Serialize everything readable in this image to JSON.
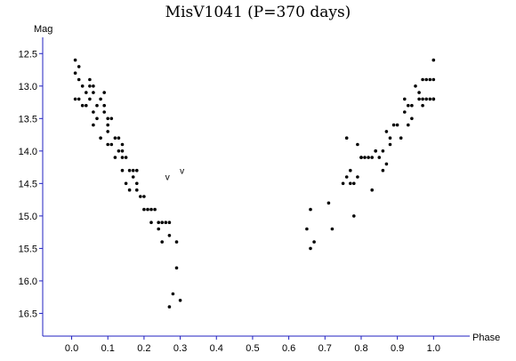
{
  "chart_data": {
    "type": "scatter",
    "title": "MisV1041 (P=370 days)",
    "xlabel": "Phase",
    "ylabel": "Mag",
    "xlim": [
      -0.08,
      1.1
    ],
    "ylim": [
      16.85,
      12.25
    ],
    "y_inverted": true,
    "x_ticks": [
      "0.0",
      "0.1",
      "0.2",
      "0.3",
      "0.4",
      "0.5",
      "0.6",
      "0.7",
      "0.8",
      "0.9",
      "1.0"
    ],
    "y_ticks": [
      "12.5",
      "13.0",
      "13.5",
      "14.0",
      "14.5",
      "15.0",
      "15.5",
      "16.0",
      "16.5"
    ],
    "grid": false,
    "marker_color": "#000000",
    "axis_color": "#2020c0",
    "points": [
      [
        0.01,
        12.6
      ],
      [
        0.01,
        12.8
      ],
      [
        0.02,
        12.7
      ],
      [
        0.02,
        13.2
      ],
      [
        0.02,
        12.9
      ],
      [
        0.01,
        13.2
      ],
      [
        0.03,
        13.0
      ],
      [
        0.03,
        13.3
      ],
      [
        0.04,
        13.1
      ],
      [
        0.04,
        13.3
      ],
      [
        0.05,
        12.9
      ],
      [
        0.05,
        13.2
      ],
      [
        0.05,
        13.0
      ],
      [
        0.06,
        13.1
      ],
      [
        0.06,
        13.0
      ],
      [
        0.06,
        13.4
      ],
      [
        0.06,
        13.6
      ],
      [
        0.07,
        13.3
      ],
      [
        0.07,
        13.5
      ],
      [
        0.08,
        13.2
      ],
      [
        0.08,
        13.8
      ],
      [
        0.09,
        13.3
      ],
      [
        0.09,
        13.1
      ],
      [
        0.09,
        13.4
      ],
      [
        0.1,
        13.5
      ],
      [
        0.1,
        13.7
      ],
      [
        0.1,
        13.6
      ],
      [
        0.1,
        13.9
      ],
      [
        0.11,
        13.5
      ],
      [
        0.11,
        13.9
      ],
      [
        0.12,
        13.8
      ],
      [
        0.12,
        14.1
      ],
      [
        0.13,
        13.8
      ],
      [
        0.13,
        14.0
      ],
      [
        0.14,
        14.1
      ],
      [
        0.14,
        13.9
      ],
      [
        0.14,
        14.0
      ],
      [
        0.14,
        14.3
      ],
      [
        0.15,
        14.1
      ],
      [
        0.15,
        14.5
      ],
      [
        0.16,
        14.3
      ],
      [
        0.16,
        14.6
      ],
      [
        0.17,
        14.3
      ],
      [
        0.17,
        14.4
      ],
      [
        0.18,
        14.3
      ],
      [
        0.18,
        14.6
      ],
      [
        0.18,
        14.5
      ],
      [
        0.19,
        14.7
      ],
      [
        0.2,
        14.7
      ],
      [
        0.2,
        14.9
      ],
      [
        0.21,
        14.9
      ],
      [
        0.22,
        15.1
      ],
      [
        0.22,
        14.9
      ],
      [
        0.23,
        14.9
      ],
      [
        0.24,
        15.1
      ],
      [
        0.24,
        15.2
      ],
      [
        0.25,
        15.1
      ],
      [
        0.25,
        15.4
      ],
      [
        0.26,
        15.1
      ],
      [
        0.27,
        15.3
      ],
      [
        0.27,
        15.1
      ],
      [
        0.27,
        16.4
      ],
      [
        0.28,
        16.2
      ],
      [
        0.29,
        15.8
      ],
      [
        0.29,
        15.4
      ],
      [
        0.3,
        16.3
      ],
      [
        0.65,
        15.2
      ],
      [
        0.66,
        15.5
      ],
      [
        0.66,
        14.9
      ],
      [
        0.67,
        15.4
      ],
      [
        0.71,
        14.8
      ],
      [
        0.72,
        15.2
      ],
      [
        0.75,
        14.5
      ],
      [
        0.76,
        13.8
      ],
      [
        0.76,
        14.4
      ],
      [
        0.77,
        14.3
      ],
      [
        0.77,
        14.5
      ],
      [
        0.78,
        15.0
      ],
      [
        0.78,
        14.5
      ],
      [
        0.79,
        13.9
      ],
      [
        0.79,
        14.4
      ],
      [
        0.8,
        14.1
      ],
      [
        0.8,
        14.1
      ],
      [
        0.81,
        14.1
      ],
      [
        0.82,
        14.1
      ],
      [
        0.83,
        14.6
      ],
      [
        0.83,
        14.1
      ],
      [
        0.84,
        14.0
      ],
      [
        0.84,
        14.0
      ],
      [
        0.85,
        14.1
      ],
      [
        0.86,
        14.3
      ],
      [
        0.86,
        14.0
      ],
      [
        0.87,
        13.7
      ],
      [
        0.87,
        14.2
      ],
      [
        0.88,
        13.9
      ],
      [
        0.88,
        13.8
      ],
      [
        0.89,
        13.6
      ],
      [
        0.9,
        13.6
      ],
      [
        0.91,
        13.8
      ],
      [
        0.92,
        13.2
      ],
      [
        0.92,
        13.4
      ],
      [
        0.93,
        13.3
      ],
      [
        0.93,
        13.6
      ],
      [
        0.94,
        13.5
      ],
      [
        0.94,
        13.3
      ],
      [
        0.95,
        13.0
      ],
      [
        0.96,
        13.2
      ],
      [
        0.96,
        13.1
      ],
      [
        0.97,
        12.9
      ],
      [
        0.97,
        13.3
      ],
      [
        0.97,
        13.2
      ],
      [
        0.98,
        12.9
      ],
      [
        0.98,
        13.2
      ],
      [
        0.99,
        12.9
      ],
      [
        0.99,
        13.2
      ],
      [
        1.0,
        12.6
      ],
      [
        1.0,
        13.2
      ],
      [
        1.0,
        12.9
      ],
      [
        1.0,
        13.2
      ]
    ],
    "annotations": [
      {
        "text": "v",
        "x": 0.265,
        "y": 14.45
      },
      {
        "text": "v",
        "x": 0.305,
        "y": 14.35
      }
    ]
  }
}
